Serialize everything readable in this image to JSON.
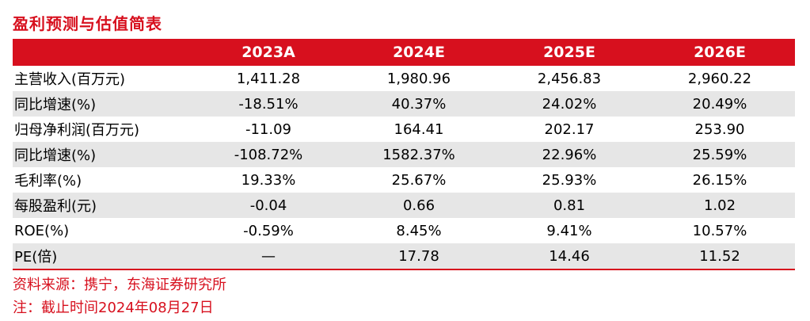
{
  "title": "盈利预测与估值简表",
  "table": {
    "headers": [
      "",
      "2023A",
      "2024E",
      "2025E",
      "2026E"
    ],
    "rows": [
      {
        "label": "主营收入(百万元)",
        "values": [
          "1,411.28",
          "1,980.96",
          "2,456.83",
          "2,960.22"
        ]
      },
      {
        "label": "同比增速(%)",
        "values": [
          "-18.51%",
          "40.37%",
          "24.02%",
          "20.49%"
        ]
      },
      {
        "label": "归母净利润(百万元)",
        "values": [
          "-11.09",
          "164.41",
          "202.17",
          "253.90"
        ]
      },
      {
        "label": "同比增速(%)",
        "values": [
          "-108.72%",
          "1582.37%",
          "22.96%",
          "25.59%"
        ]
      },
      {
        "label": "毛利率(%)",
        "values": [
          "19.33%",
          "25.67%",
          "25.93%",
          "26.15%"
        ]
      },
      {
        "label": "每股盈利(元)",
        "values": [
          "-0.04",
          "0.66",
          "0.81",
          "1.02"
        ]
      },
      {
        "label": "ROE(%)",
        "values": [
          "-0.59%",
          "8.45%",
          "9.41%",
          "10.57%"
        ]
      },
      {
        "label": "PE(倍)",
        "values": [
          "—",
          "17.78",
          "14.46",
          "11.52"
        ]
      }
    ]
  },
  "notes": {
    "source": "资料来源：携宁，东海证券研究所",
    "date_note": "注：截止时间2024年08月27日"
  },
  "colors": {
    "accent": "#D7101E",
    "row_shade": "#E6E6E6"
  }
}
